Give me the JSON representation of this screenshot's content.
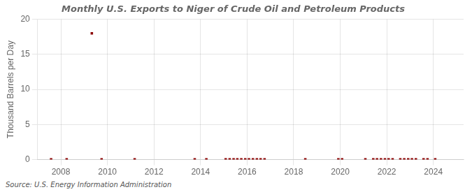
{
  "chart_data": {
    "type": "scatter",
    "title": "Monthly U.S. Exports to Niger of Crude Oil and Petroleum Products",
    "ylabel": "Thousand Barrels per Day",
    "source": "Source: U.S. Energy Information Administration",
    "color": "#8b0000",
    "marker": "square",
    "grid": true,
    "xlim": [
      2007.0,
      2025.3
    ],
    "ylim": [
      0,
      20
    ],
    "xticks": [
      2008,
      2010,
      2012,
      2014,
      2016,
      2018,
      2020,
      2022,
      2024
    ],
    "yticks": [
      0,
      5,
      10,
      15,
      20
    ],
    "x": [
      2007.58,
      2008.25,
      2009.33,
      2009.75,
      2011.17,
      2013.75,
      2014.25,
      2015.08,
      2015.25,
      2015.42,
      2015.58,
      2015.75,
      2015.92,
      2016.08,
      2016.25,
      2016.42,
      2016.58,
      2016.75,
      2018.5,
      2019.92,
      2020.08,
      2021.08,
      2021.42,
      2021.58,
      2021.75,
      2021.92,
      2022.08,
      2022.25,
      2022.58,
      2022.75,
      2022.92,
      2023.08,
      2023.25,
      2023.58,
      2023.75,
      2024.08
    ],
    "values": [
      0.03,
      0.03,
      18.0,
      0.03,
      0.03,
      0.03,
      0.03,
      0.03,
      0.03,
      0.03,
      0.03,
      0.03,
      0.03,
      0.03,
      0.03,
      0.03,
      0.03,
      0.03,
      0.03,
      0.03,
      0.03,
      0.03,
      0.03,
      0.03,
      0.03,
      0.03,
      0.03,
      0.03,
      0.03,
      0.03,
      0.03,
      0.03,
      0.03,
      0.03,
      0.03,
      0.03
    ]
  }
}
